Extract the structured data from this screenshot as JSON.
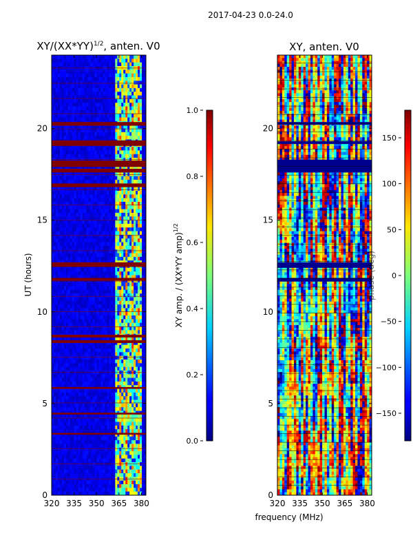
{
  "figure": {
    "suptitle": "2017-04-23 0.0-24.0",
    "xlabel_shared": "frequency (MHz)"
  },
  "chart_data": [
    {
      "type": "heatmap",
      "title_main": "XY/(XX*YY)",
      "title_sup": "1/2",
      "title_tail": ", anten. V0",
      "ylabel": "UT (hours)",
      "xlim": [
        320,
        383
      ],
      "ylim": [
        0,
        24
      ],
      "xticks": [
        "320",
        "335",
        "350",
        "365",
        "380"
      ],
      "xtick_values": [
        320,
        335,
        350,
        365,
        380
      ],
      "yticks": [
        "0",
        "5",
        "10",
        "15",
        "20"
      ],
      "ytick_values": [
        0,
        5,
        10,
        15,
        20
      ],
      "colormap": "jet",
      "colorbar": {
        "label_main": "XY amp. / (XX*YY amp)",
        "label_sup": "1/2",
        "range": [
          0.0,
          1.0
        ],
        "ticks": [
          "0.0",
          "0.2",
          "0.4",
          "0.6",
          "0.8",
          "1.0"
        ],
        "tick_values": [
          0.0,
          0.2,
          0.4,
          0.6,
          0.8,
          1.0
        ]
      },
      "saturated_bands_hours": [
        [
          20.15,
          20.35
        ],
        [
          19.05,
          19.35
        ],
        [
          17.9,
          18.25
        ],
        [
          17.6,
          17.8
        ],
        [
          16.8,
          17.0
        ],
        [
          12.45,
          12.7
        ],
        [
          11.7,
          11.85
        ],
        [
          8.6,
          8.75
        ],
        [
          8.3,
          8.45
        ],
        [
          5.8,
          5.9
        ],
        [
          4.4,
          4.5
        ],
        [
          3.3,
          3.4
        ]
      ],
      "high_amplitude_band_mhz": [
        362,
        380
      ]
    },
    {
      "type": "heatmap",
      "title": "XY, anten. V0",
      "ylabel": "phase (deg)",
      "xlim": [
        320,
        383
      ],
      "ylim": [
        0,
        24
      ],
      "xticks": [
        "320",
        "335",
        "350",
        "365",
        "380"
      ],
      "xtick_values": [
        320,
        335,
        350,
        365,
        380
      ],
      "yticks": [
        "0",
        "5",
        "10",
        "15",
        "20"
      ],
      "ytick_values": [
        0,
        5,
        10,
        15,
        20
      ],
      "colormap": "jet",
      "colorbar": {
        "range": [
          -180,
          180
        ],
        "ticks": [
          "150",
          "100",
          "50",
          "0",
          "−50",
          "−100",
          "−150"
        ],
        "tick_values": [
          150,
          100,
          50,
          0,
          -50,
          -100,
          -150
        ]
      },
      "dark_bands_hours": [
        [
          20.2,
          20.35
        ],
        [
          19.15,
          19.3
        ],
        [
          17.6,
          18.3
        ],
        [
          12.4,
          12.7
        ],
        [
          11.65,
          11.85
        ]
      ]
    }
  ],
  "colors": {
    "saturated": "#800000",
    "low": "#00008f"
  }
}
